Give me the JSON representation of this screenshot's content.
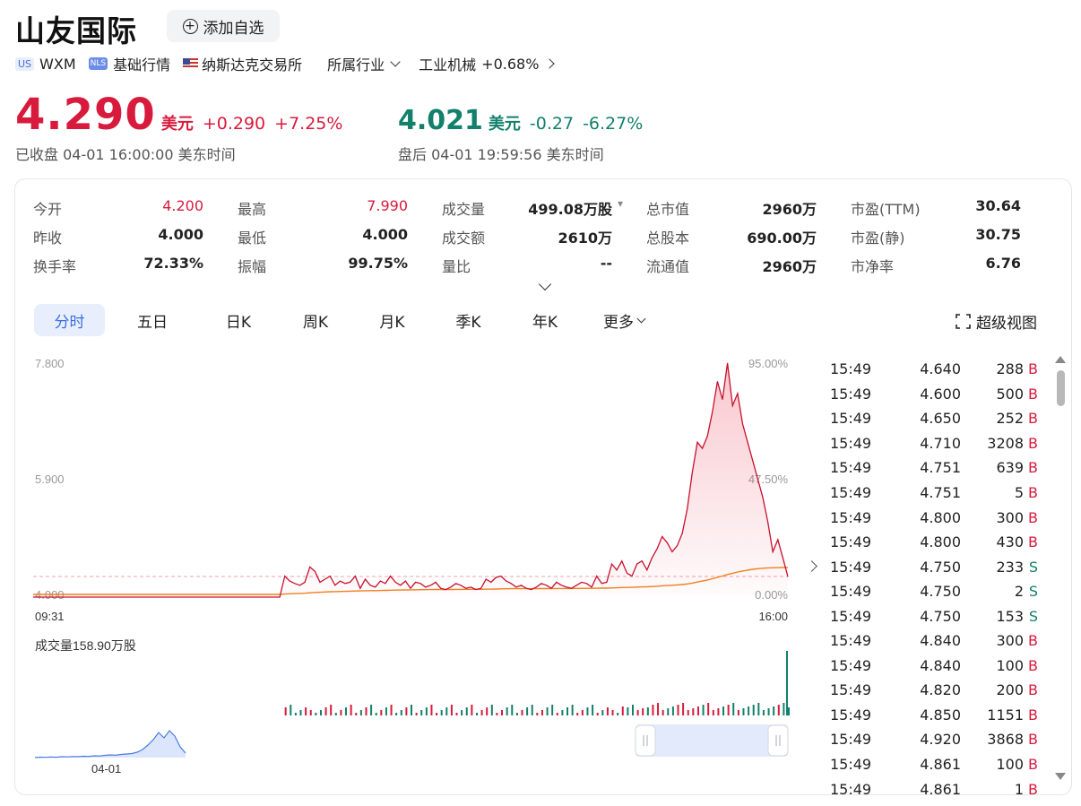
{
  "header": {
    "title": "山友国际",
    "add_watchlist": "添加自选",
    "market_badge": "US",
    "ticker": "WXM",
    "nls_badge": "NLS",
    "quote_level": "基础行情",
    "exchange": "纳斯达克交易所",
    "industry_label": "所属行业",
    "industry_name": "工业机械",
    "industry_change": "+0.68%"
  },
  "quote": {
    "price": "4.290",
    "unit": "美元",
    "change": "+0.290",
    "change_pct": "+7.25%",
    "status": "已收盘  04-01 16:00:00  美东时间",
    "after_price": "4.021",
    "after_unit": "美元",
    "after_change": "-0.27",
    "after_change_pct": "-6.27%",
    "after_status": "盘后  04-01 19:59:56  美东时间"
  },
  "stats": [
    [
      {
        "label": "今开",
        "value": "4.200",
        "color": "red"
      },
      {
        "label": "最高",
        "value": "7.990",
        "color": "red"
      },
      {
        "label": "成交量",
        "value": "499.08万股"
      },
      {
        "label": "总市值",
        "value": "2960万",
        "has_dropdown": true
      },
      {
        "label": "市盈(TTM)",
        "value": "30.64"
      }
    ],
    [
      {
        "label": "昨收",
        "value": "4.000"
      },
      {
        "label": "最低",
        "value": "4.000"
      },
      {
        "label": "成交额",
        "value": "2610万"
      },
      {
        "label": "总股本",
        "value": "690.00万"
      },
      {
        "label": "市盈(静)",
        "value": "30.75"
      }
    ],
    [
      {
        "label": "换手率",
        "value": "72.33%"
      },
      {
        "label": "振幅",
        "value": "99.75%"
      },
      {
        "label": "量比",
        "value": "--"
      },
      {
        "label": "流通值",
        "value": "2960万"
      },
      {
        "label": "市净率",
        "value": "6.76"
      }
    ]
  ],
  "tabs": [
    "分时",
    "五日",
    "日K",
    "周K",
    "月K",
    "季K",
    "年K",
    "更多"
  ],
  "super_view": "超级视图",
  "chart": {
    "y_left": [
      "7.800",
      "5.900",
      "4.000"
    ],
    "y_right": [
      "95.00%",
      "47.50%",
      "0.00%"
    ],
    "x_start": "09:31",
    "x_end": "16:00",
    "volume_label": "成交量158.90万股",
    "overview_date": "04-01",
    "colors": {
      "price": "#c8102e",
      "avg": "#f08020",
      "up": "#d81b3c",
      "down": "#12806b",
      "overview": "#4a7be0"
    }
  },
  "chart_data": {
    "type": "line",
    "title": "",
    "xlabel": "",
    "ylabel": "",
    "ylim": [
      4.0,
      7.8
    ],
    "x_range": [
      "09:31",
      "16:00"
    ],
    "prev_close": 4.0,
    "series": [
      {
        "values": [
          4.0,
          4.0,
          4.0,
          4.0,
          4.0,
          4.0,
          4.0,
          4.0,
          4.0,
          4.0,
          4.0,
          4.0,
          4.0,
          4.0,
          4.0,
          4.0,
          4.0,
          4.0,
          4.0,
          4.0,
          4.0,
          4.0,
          4.0,
          4.0,
          4.0,
          4.0,
          4.0,
          4.0,
          4.0,
          4.0,
          4.0,
          4.0,
          4.0,
          4.0,
          4.0,
          4.0,
          4.0,
          4.0,
          4.0,
          4.0,
          4.0,
          4.0,
          4.0,
          4.0,
          4.0,
          4.0,
          4.0,
          4.0,
          4.0,
          4.0,
          4.3,
          4.22,
          4.18,
          4.15,
          4.2,
          4.45,
          4.38,
          4.2,
          4.25,
          4.3,
          4.15,
          4.22,
          4.18,
          4.2,
          4.3,
          4.1,
          4.25,
          4.15,
          4.12,
          4.22,
          4.18,
          4.3,
          4.2,
          4.15,
          4.22,
          4.1,
          4.2,
          4.18,
          4.12,
          4.15,
          4.2,
          4.1,
          4.08,
          4.12,
          4.18,
          4.15,
          4.1,
          4.12,
          4.08,
          4.1,
          4.25,
          4.2,
          4.28,
          4.3,
          4.22,
          4.18,
          4.12,
          4.15,
          4.1,
          4.08,
          4.12,
          4.18,
          4.15,
          4.1,
          4.2,
          4.15,
          4.12,
          4.1,
          4.15,
          4.2,
          4.18,
          4.12,
          4.3,
          4.18,
          4.2,
          4.5,
          4.4,
          4.55,
          4.35,
          4.3,
          4.5,
          4.55,
          4.4,
          4.6,
          4.75,
          4.95,
          4.85,
          4.7,
          4.8,
          5.0,
          5.4,
          6.0,
          6.5,
          6.4,
          6.6,
          7.0,
          7.5,
          7.2,
          7.8,
          7.1,
          7.3,
          6.8,
          6.5,
          6.2,
          5.9,
          5.6,
          5.2,
          4.7,
          4.9,
          4.6,
          4.29
        ]
      }
    ]
  },
  "ticks": [
    {
      "time": "15:49",
      "price": "4.640",
      "vol": "288",
      "side": "B"
    },
    {
      "time": "15:49",
      "price": "4.600",
      "vol": "500",
      "side": "B"
    },
    {
      "time": "15:49",
      "price": "4.650",
      "vol": "252",
      "side": "B"
    },
    {
      "time": "15:49",
      "price": "4.710",
      "vol": "3208",
      "side": "B"
    },
    {
      "time": "15:49",
      "price": "4.751",
      "vol": "639",
      "side": "B"
    },
    {
      "time": "15:49",
      "price": "4.751",
      "vol": "5",
      "side": "B"
    },
    {
      "time": "15:49",
      "price": "4.800",
      "vol": "300",
      "side": "B"
    },
    {
      "time": "15:49",
      "price": "4.800",
      "vol": "430",
      "side": "B"
    },
    {
      "time": "15:49",
      "price": "4.750",
      "vol": "233",
      "side": "S"
    },
    {
      "time": "15:49",
      "price": "4.750",
      "vol": "2",
      "side": "S"
    },
    {
      "time": "15:49",
      "price": "4.750",
      "vol": "153",
      "side": "S"
    },
    {
      "time": "15:49",
      "price": "4.840",
      "vol": "300",
      "side": "B"
    },
    {
      "time": "15:49",
      "price": "4.840",
      "vol": "100",
      "side": "B"
    },
    {
      "time": "15:49",
      "price": "4.820",
      "vol": "200",
      "side": "B"
    },
    {
      "time": "15:49",
      "price": "4.850",
      "vol": "1151",
      "side": "B"
    },
    {
      "time": "15:49",
      "price": "4.920",
      "vol": "3868",
      "side": "B"
    },
    {
      "time": "15:49",
      "price": "4.861",
      "vol": "100",
      "side": "B"
    },
    {
      "time": "15:49",
      "price": "4.861",
      "vol": "1",
      "side": "B"
    }
  ]
}
